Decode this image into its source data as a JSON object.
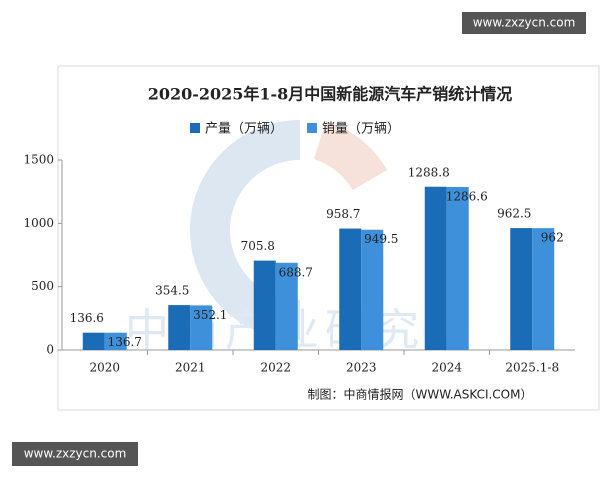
{
  "watermarks": [
    "www.zxzycn.com",
    "www.zxzycn.com"
  ],
  "chart_data": {
    "type": "bar",
    "title": "2020-2025年1-8月中国新能源汽车产销统计情况",
    "categories": [
      "2020",
      "2021",
      "2022",
      "2023",
      "2024",
      "2025.1-8"
    ],
    "series": [
      {
        "name": "产量（万辆）",
        "color": "#1b6cb7",
        "values": [
          136.6,
          354.5,
          705.8,
          958.7,
          1288.8,
          962.5
        ]
      },
      {
        "name": "销量（万辆）",
        "color": "#3d90d9",
        "values": [
          136.7,
          352.1,
          688.7,
          949.5,
          1286.6,
          962
        ]
      }
    ],
    "ylim": [
      0,
      1500
    ],
    "yticks": [
      0,
      500,
      1000,
      1500
    ],
    "grid": false,
    "source": "制图：中商情报网（WWW.ASKCI.COM）",
    "watermark": "中商产业研究院"
  }
}
